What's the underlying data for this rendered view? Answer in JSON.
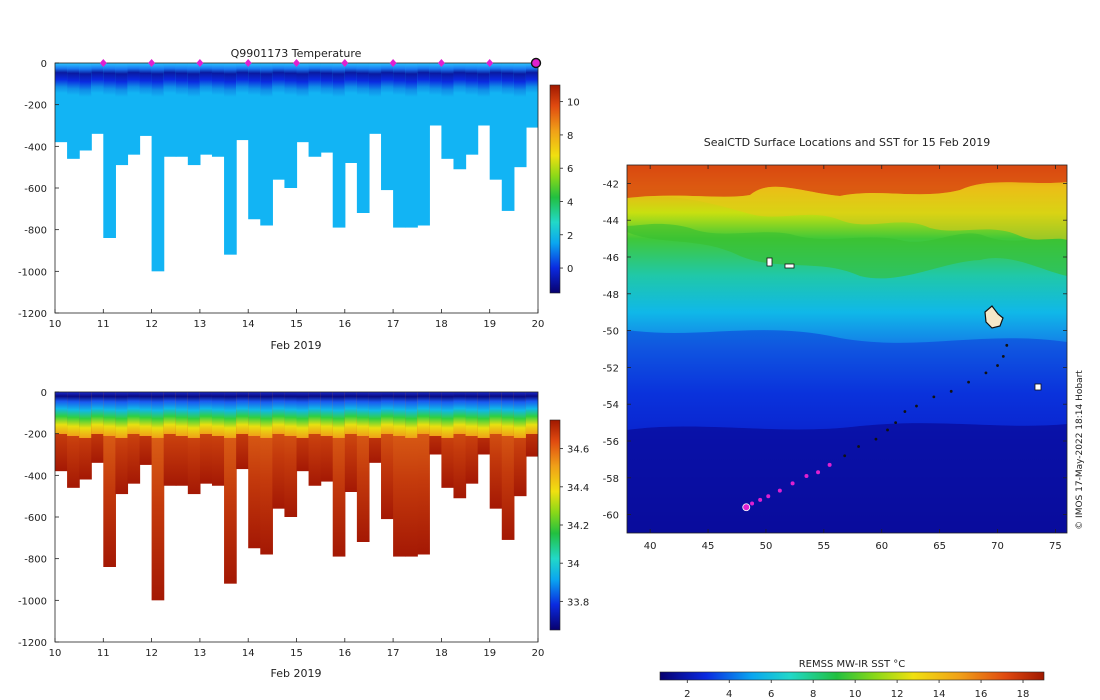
{
  "chart_data": [
    {
      "type": "heatmap",
      "title": "Q9901173  Temperature",
      "xlabel": "Feb 2019",
      "ylabel": "",
      "x_ticks": [
        "10",
        "11",
        "12",
        "13",
        "14",
        "15",
        "16",
        "17",
        "18",
        "19",
        "20"
      ],
      "xlim": [
        10,
        20
      ],
      "ylim": [
        -1200,
        0
      ],
      "y_ticks": [
        "0",
        "-200",
        "-400",
        "-600",
        "-800",
        "-1000",
        "-1200"
      ],
      "colorbar_ticks": [
        "10",
        "8",
        "6",
        "4",
        "2",
        "0"
      ],
      "colorbar_range": [
        -1.5,
        11
      ],
      "surface_markers": [
        11,
        12,
        13,
        14,
        15,
        16,
        17,
        18,
        19,
        20
      ],
      "profile_max_depths": [
        380,
        460,
        420,
        340,
        840,
        490,
        440,
        350,
        1000,
        450,
        450,
        490,
        440,
        450,
        920,
        370,
        750,
        780,
        560,
        600,
        380,
        450,
        430,
        790,
        480,
        720,
        340,
        610,
        790,
        790,
        780,
        300,
        460,
        510,
        440,
        300,
        560,
        710,
        500,
        310
      ]
    },
    {
      "type": "heatmap",
      "title": "",
      "xlabel": "Feb 2019",
      "ylabel": "",
      "x_ticks": [
        "10",
        "11",
        "12",
        "13",
        "14",
        "15",
        "16",
        "17",
        "18",
        "19",
        "20"
      ],
      "xlim": [
        10,
        20
      ],
      "ylim": [
        -1200,
        0
      ],
      "y_ticks": [
        "0",
        "-200",
        "-400",
        "-600",
        "-800",
        "-1000",
        "-1200"
      ],
      "colorbar_ticks": [
        "34.6",
        "34.4",
        "34.2",
        "34",
        "33.8"
      ],
      "colorbar_range": [
        33.65,
        34.75
      ],
      "profile_max_depths": [
        380,
        460,
        420,
        340,
        840,
        490,
        440,
        350,
        1000,
        450,
        450,
        490,
        440,
        450,
        920,
        370,
        750,
        780,
        560,
        600,
        380,
        450,
        430,
        790,
        480,
        720,
        340,
        610,
        790,
        790,
        780,
        300,
        460,
        510,
        440,
        300,
        560,
        710,
        500,
        310
      ]
    },
    {
      "type": "heatmap",
      "title": "SealCTD Surface Locations and SST for 15 Feb 2019",
      "xlabel": "",
      "ylabel": "",
      "x_ticks": [
        "40",
        "45",
        "50",
        "55",
        "60",
        "65",
        "70",
        "75"
      ],
      "y_ticks": [
        "-42",
        "-44",
        "-46",
        "-48",
        "-50",
        "-52",
        "-54",
        "-56",
        "-58",
        "-60"
      ],
      "xlim": [
        38,
        76
      ],
      "ylim": [
        -61,
        -41
      ],
      "colorbar_label": "REMSS MW-IR SST °C",
      "colorbar_ticks": [
        "2",
        "4",
        "6",
        "8",
        "10",
        "12",
        "14",
        "16",
        "18"
      ],
      "colorbar_range": [
        0.7,
        19
      ],
      "track": [
        [
          70.8,
          -50.8
        ],
        [
          70.5,
          -51.4
        ],
        [
          70.0,
          -51.9
        ],
        [
          69.0,
          -52.3
        ],
        [
          67.5,
          -52.8
        ],
        [
          66.0,
          -53.3
        ],
        [
          64.5,
          -53.6
        ],
        [
          63.0,
          -54.1
        ],
        [
          62.0,
          -54.4
        ],
        [
          61.2,
          -55.0
        ],
        [
          60.5,
          -55.4
        ],
        [
          59.5,
          -55.9
        ],
        [
          58.0,
          -56.3
        ],
        [
          56.8,
          -56.8
        ],
        [
          55.5,
          -57.3
        ],
        [
          54.5,
          -57.7
        ],
        [
          53.5,
          -57.9
        ],
        [
          52.3,
          -58.3
        ],
        [
          51.2,
          -58.7
        ],
        [
          50.2,
          -59.0
        ],
        [
          49.5,
          -59.2
        ],
        [
          48.8,
          -59.4
        ],
        [
          48.3,
          -59.6
        ]
      ],
      "track_start": [
        48.3,
        -59.6
      ],
      "footer_text": "© IMOS 17-May-2022 18:14 Hobart"
    }
  ]
}
